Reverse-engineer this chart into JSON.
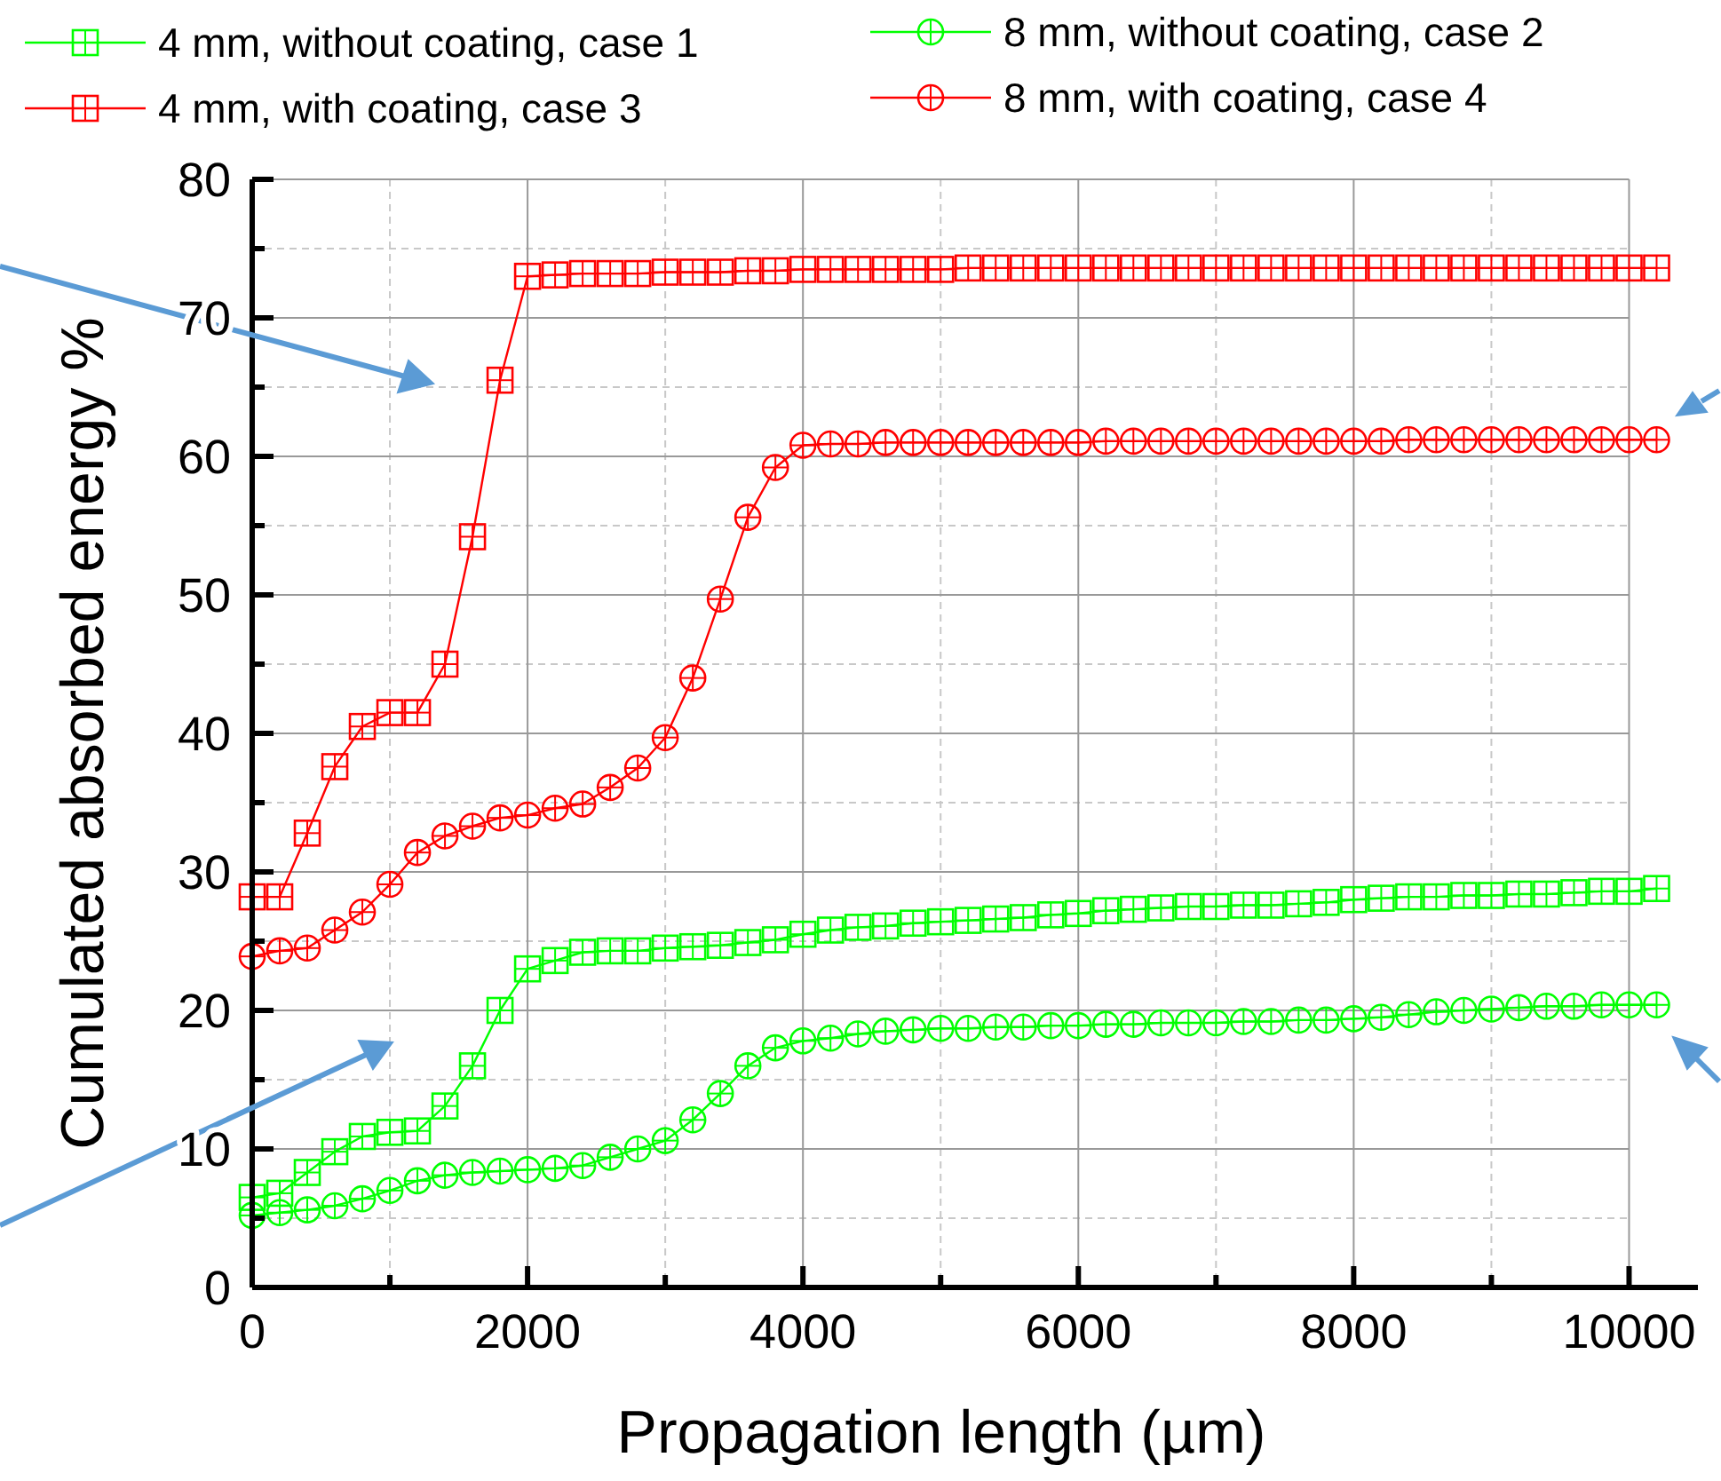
{
  "chart_data": {
    "type": "line",
    "xlabel": "Propagation length (µm)",
    "ylabel": "Cumulated absorbed energy %",
    "x": [
      0,
      200,
      400,
      600,
      800,
      1000,
      1200,
      1400,
      1600,
      1800,
      2000,
      2200,
      2400,
      2600,
      2800,
      3000,
      3200,
      3400,
      3600,
      3800,
      4000,
      4200,
      4400,
      4600,
      4800,
      5000,
      5200,
      5400,
      5600,
      5800,
      6000,
      6200,
      6400,
      6600,
      6800,
      7000,
      7200,
      7400,
      7600,
      7800,
      8000,
      8200,
      8400,
      8600,
      8800,
      9000,
      9200,
      9400,
      9600,
      9800,
      10000,
      10200
    ],
    "series": [
      {
        "name": "4 mm, without coating, case 1",
        "color": "#00ff00",
        "marker": "square",
        "values": [
          6.5,
          6.8,
          8.3,
          9.8,
          10.9,
          11.2,
          11.3,
          13.1,
          16.0,
          20.0,
          23.0,
          23.6,
          24.2,
          24.3,
          24.3,
          24.5,
          24.6,
          24.7,
          24.9,
          25.1,
          25.5,
          25.8,
          26.0,
          26.1,
          26.3,
          26.4,
          26.5,
          26.6,
          26.7,
          26.9,
          27.0,
          27.2,
          27.3,
          27.4,
          27.5,
          27.5,
          27.6,
          27.6,
          27.7,
          27.8,
          28.0,
          28.1,
          28.2,
          28.2,
          28.3,
          28.3,
          28.4,
          28.4,
          28.5,
          28.6,
          28.6,
          28.8
        ]
      },
      {
        "name": "8 mm, without coating, case 2",
        "color": "#00ff00",
        "marker": "circle",
        "values": [
          5.2,
          5.4,
          5.6,
          5.9,
          6.4,
          7.0,
          7.7,
          8.1,
          8.3,
          8.4,
          8.5,
          8.6,
          8.8,
          9.4,
          10.0,
          10.6,
          12.1,
          14.0,
          16.0,
          17.3,
          17.8,
          18.0,
          18.3,
          18.5,
          18.6,
          18.7,
          18.7,
          18.8,
          18.8,
          18.9,
          18.9,
          19.0,
          19.0,
          19.1,
          19.1,
          19.1,
          19.2,
          19.2,
          19.3,
          19.3,
          19.4,
          19.5,
          19.7,
          19.9,
          20.0,
          20.1,
          20.2,
          20.3,
          20.3,
          20.4,
          20.4,
          20.4
        ]
      },
      {
        "name": "4 mm, with coating, case 3",
        "color": "#ff0000",
        "marker": "square",
        "values": [
          28.2,
          28.2,
          32.8,
          37.6,
          40.5,
          41.5,
          41.5,
          45.0,
          54.2,
          65.5,
          73.0,
          73.1,
          73.2,
          73.2,
          73.2,
          73.3,
          73.3,
          73.3,
          73.4,
          73.4,
          73.5,
          73.5,
          73.5,
          73.5,
          73.5,
          73.5,
          73.6,
          73.6,
          73.6,
          73.6,
          73.6,
          73.6,
          73.6,
          73.6,
          73.6,
          73.6,
          73.6,
          73.6,
          73.6,
          73.6,
          73.6,
          73.6,
          73.6,
          73.6,
          73.6,
          73.6,
          73.6,
          73.6,
          73.6,
          73.6,
          73.6,
          73.6
        ]
      },
      {
        "name": "8 mm, with coating, case 4",
        "color": "#ff0000",
        "marker": "circle",
        "values": [
          23.9,
          24.3,
          24.5,
          25.8,
          27.1,
          29.1,
          31.4,
          32.6,
          33.3,
          33.9,
          34.1,
          34.6,
          34.9,
          36.1,
          37.5,
          39.7,
          44.0,
          49.7,
          55.6,
          59.2,
          60.8,
          60.9,
          60.9,
          61.0,
          61.0,
          61.0,
          61.0,
          61.0,
          61.0,
          61.0,
          61.0,
          61.1,
          61.1,
          61.1,
          61.1,
          61.1,
          61.1,
          61.1,
          61.1,
          61.1,
          61.1,
          61.1,
          61.2,
          61.2,
          61.2,
          61.2,
          61.2,
          61.2,
          61.2,
          61.2,
          61.2,
          61.2
        ]
      }
    ],
    "xlim": [
      0,
      10500
    ],
    "xticks": [
      0,
      2000,
      4000,
      6000,
      8000,
      10000
    ],
    "ylim": [
      0,
      80
    ],
    "yticks": [
      0,
      10,
      20,
      30,
      40,
      50,
      60,
      70,
      80
    ],
    "grid": true,
    "legend": "top",
    "line_style": "solid"
  }
}
